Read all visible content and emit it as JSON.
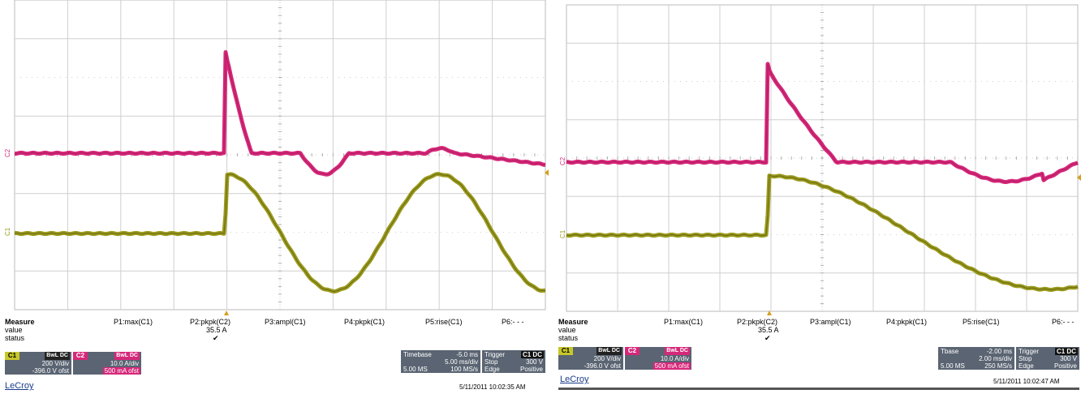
{
  "colors": {
    "ch1": "#9a9a1e",
    "ch2": "#d6287a",
    "grid": "#c8c8c8",
    "trigger": "#d4a020"
  },
  "panels": [
    {
      "measure": {
        "header": "Measure",
        "row_value": "value",
        "row_status": "status",
        "params": [
          "P1:max(C1)",
          "P2:pkpk(C2)",
          "P3:ampl(C1)",
          "P4:pkpk(C1)",
          "P5:rise(C1)",
          "P6:- - -"
        ],
        "p2_value": "35.5 A",
        "p2_status": "✔"
      },
      "ch1": {
        "tag": "C1",
        "coupling": "BwL DC",
        "vdiv": "200 V/div",
        "offset": "-396.0 V ofst"
      },
      "ch2": {
        "tag": "C2",
        "coupling": "BwL DC",
        "vdiv": "10.0 A/div",
        "offset": "500 mA ofst"
      },
      "timebase": {
        "label": "Timebase",
        "delay": "-5.0 ms",
        "div": "5.00 ms/div",
        "samples": "5.00 MS",
        "rate": "100 MS/s"
      },
      "trigger": {
        "label": "Trigger",
        "ch": "C1 DC",
        "mode": "Stop",
        "level": "300 V",
        "type": "Edge",
        "slope": "Positive"
      },
      "brand": "LeCroy",
      "datetime": "5/11/2011 10:02:35 AM",
      "marker_c1": "C1",
      "marker_c2": "C2"
    },
    {
      "measure": {
        "header": "Measure",
        "row_value": "value",
        "row_status": "status",
        "params": [
          "P1:max(C1)",
          "P2:pkpk(C2)",
          "P3:ampl(C1)",
          "P4:pkpk(C1)",
          "P5:rise(C1)",
          "P6:- - -"
        ],
        "p2_value": "35.5 A",
        "p2_status": "✔"
      },
      "ch1": {
        "tag": "C1",
        "coupling": "BwL DC",
        "vdiv": "200 V/div",
        "offset": "-396.0 V ofst"
      },
      "ch2": {
        "tag": "C2",
        "coupling": "BwL DC",
        "vdiv": "10.0 A/div",
        "offset": "500 mA ofst"
      },
      "timebase": {
        "label": "Tbase",
        "delay": "-2.00 ms",
        "div": "2.00 ms/div",
        "samples": "5.00 MS",
        "rate": "250 MS/s"
      },
      "trigger": {
        "label": "Trigger",
        "ch": "C1 DC",
        "mode": "Stop",
        "level": "300 V",
        "type": "Edge",
        "slope": "Positive"
      },
      "brand": "LeCroy",
      "datetime": "5/11/2011 10:02:47 AM",
      "marker_c1": "C1",
      "marker_c2": "C2"
    }
  ]
}
